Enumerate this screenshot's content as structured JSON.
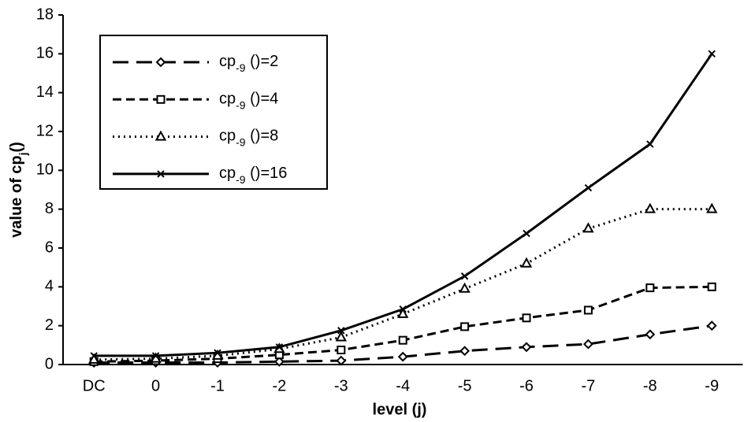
{
  "chart_data": {
    "type": "line",
    "x_label": "level (j)",
    "y_label": "value of cpj()",
    "categories": [
      "DC",
      "0",
      "-1",
      "-2",
      "-3",
      "-4",
      "-5",
      "-6",
      "-7",
      "-8",
      "-9"
    ],
    "series": [
      {
        "name": "cp-9 ()=2",
        "color": "#000000",
        "marker": "diamond",
        "dash": "long-dash",
        "values": [
          0.1,
          0.1,
          0.1,
          0.15,
          0.2,
          0.4,
          0.7,
          0.9,
          1.05,
          1.55,
          2
        ]
      },
      {
        "name": "cp-9 ()=4",
        "color": "#000000",
        "marker": "square",
        "dash": "dash",
        "values": [
          0.15,
          0.2,
          0.3,
          0.5,
          0.75,
          1.25,
          1.95,
          2.4,
          2.8,
          3.95,
          4
        ]
      },
      {
        "name": "cp-9 ()=8",
        "color": "#000000",
        "marker": "triangle",
        "dash": "dot",
        "values": [
          0.25,
          0.3,
          0.45,
          0.8,
          1.4,
          2.6,
          3.9,
          5.2,
          7.0,
          8.0,
          8.0
        ]
      },
      {
        "name": "cp-9 ()=16",
        "color": "#000000",
        "marker": "x",
        "dash": "solid",
        "values": [
          0.45,
          0.45,
          0.6,
          0.9,
          1.75,
          2.85,
          4.55,
          6.75,
          9.1,
          11.35,
          16
        ]
      }
    ],
    "ylim": [
      0,
      18
    ],
    "yticks": [
      0,
      2,
      4,
      6,
      8,
      10,
      12,
      14,
      16,
      18
    ],
    "grid": false,
    "legend": "upper-left"
  }
}
